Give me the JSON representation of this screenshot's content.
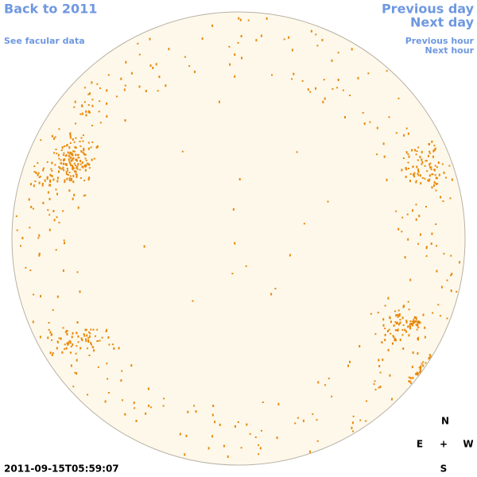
{
  "links": {
    "back": "Back to 2011",
    "facular": "See facular data",
    "previous_day": "Previous day",
    "next_day": "Next day",
    "previous_hour": "Previous hour",
    "next_hour": "Next hour"
  },
  "timestamp": "2011-09-15T05:59:07",
  "compass": {
    "north": "N",
    "east": "E",
    "center": "+",
    "west": "W",
    "south": "S"
  }
}
